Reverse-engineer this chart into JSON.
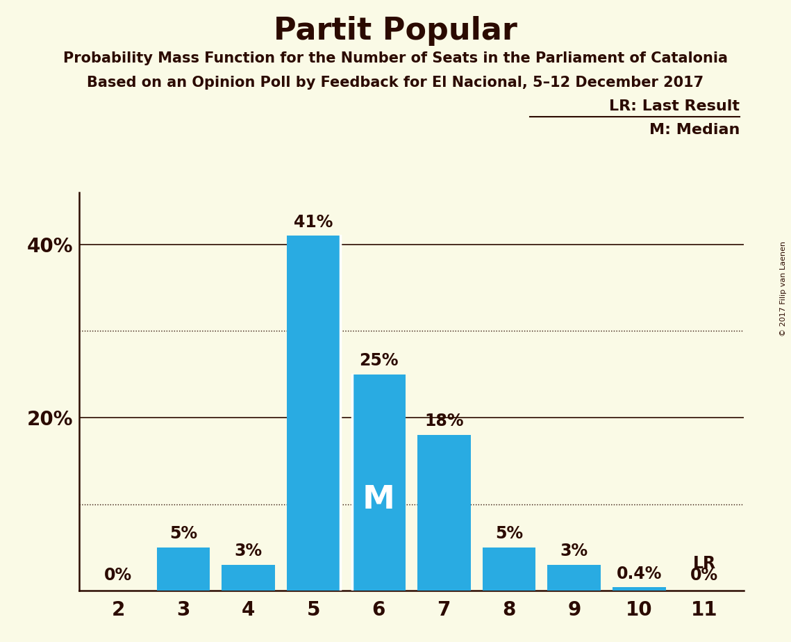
{
  "title": "Partit Popular",
  "subtitle1": "Probability Mass Function for the Number of Seats in the Parliament of Catalonia",
  "subtitle2": "Based on an Opinion Poll by Feedback for El Nacional, 5–12 December 2017",
  "copyright": "© 2017 Filip van Laenen",
  "x_labels": [
    2,
    3,
    4,
    5,
    6,
    7,
    8,
    9,
    10,
    11
  ],
  "values": [
    0.0,
    5.0,
    3.0,
    41.0,
    25.0,
    18.0,
    5.0,
    3.0,
    0.4,
    0.0
  ],
  "bar_color": "#29ABE2",
  "background_color": "#FAFAE6",
  "text_color": "#2B0A00",
  "median_bar": 6,
  "lr_bar": 11,
  "bar_labels": [
    "0%",
    "5%",
    "3%",
    "41%",
    "25%",
    "18%",
    "5%",
    "3%",
    "0.4%",
    "0%"
  ],
  "ylim": [
    0,
    46
  ],
  "solid_hlines": [
    20,
    40
  ],
  "dotted_hlines": [
    10,
    30
  ],
  "legend_lr": "LR: Last Result",
  "legend_m": "M: Median",
  "median_label": "M",
  "lr_label": "LR",
  "ytick_labels_show": [
    "20%",
    "40%"
  ],
  "ytick_labels_pos": [
    20,
    40
  ]
}
